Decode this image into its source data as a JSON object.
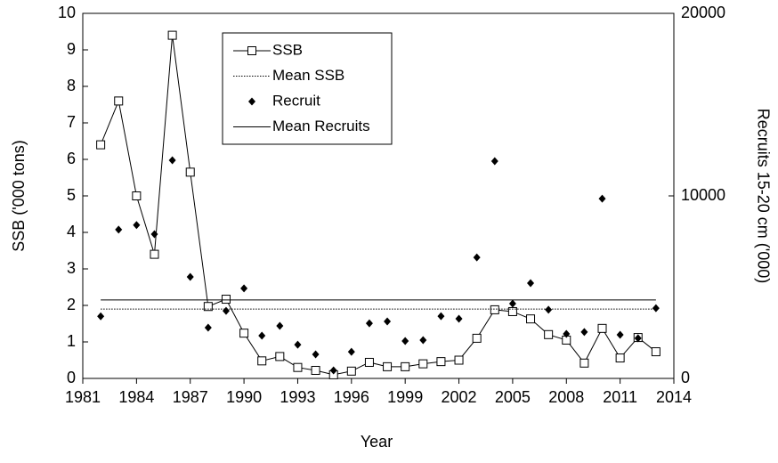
{
  "chart_data": {
    "type": "combo",
    "x_label": "Year",
    "y_label": "SSB ('000 tons)",
    "y2_label": "Recruits 15-20 cm ('000)",
    "x": [
      1982,
      1983,
      1984,
      1985,
      1986,
      1987,
      1988,
      1989,
      1990,
      1991,
      1992,
      1993,
      1994,
      1995,
      1996,
      1997,
      1998,
      1999,
      2000,
      2001,
      2002,
      2003,
      2004,
      2005,
      2006,
      2007,
      2008,
      2009,
      2010,
      2011,
      2012,
      2013
    ],
    "xlim": [
      1981,
      2014
    ],
    "xticks": [
      1981,
      1984,
      1987,
      1990,
      1993,
      1996,
      1999,
      2002,
      2005,
      2008,
      2011,
      2014
    ],
    "ylim": [
      0,
      10
    ],
    "yticks": [
      0,
      1,
      2,
      3,
      4,
      5,
      6,
      7,
      8,
      9,
      10
    ],
    "y2lim": [
      0,
      20000
    ],
    "y2ticks": [
      0,
      10000,
      20000
    ],
    "series": [
      {
        "name": "SSB",
        "kind": "line-square",
        "color": "#000000",
        "axis": "y",
        "values": [
          6.4,
          7.6,
          5.0,
          3.4,
          9.4,
          5.65,
          1.97,
          2.17,
          1.24,
          0.48,
          0.6,
          0.3,
          0.22,
          0.1,
          0.2,
          0.44,
          0.32,
          0.32,
          0.4,
          0.46,
          0.5,
          1.1,
          1.88,
          1.83,
          1.63,
          1.2,
          1.05,
          0.42,
          1.37,
          0.56,
          1.12,
          0.73
        ]
      },
      {
        "name": "Mean SSB",
        "kind": "hline-dotted",
        "color": "#000000",
        "axis": "y",
        "value": 1.9
      },
      {
        "name": "Recruit",
        "kind": "diamond",
        "color": "#000000",
        "axis": "y2",
        "values": [
          3400,
          8150,
          8400,
          7900,
          11950,
          5560,
          2780,
          3700,
          4930,
          2340,
          2880,
          1850,
          1320,
          440,
          1460,
          3020,
          3120,
          2050,
          2100,
          3410,
          3270,
          6630,
          11900,
          4100,
          5220,
          3760,
          2440,
          2540,
          9850,
          2390,
          2200,
          3850
        ]
      },
      {
        "name": "Mean Recruits",
        "kind": "hline-solid",
        "color": "#000000",
        "axis": "y2",
        "value": 4300
      }
    ]
  }
}
